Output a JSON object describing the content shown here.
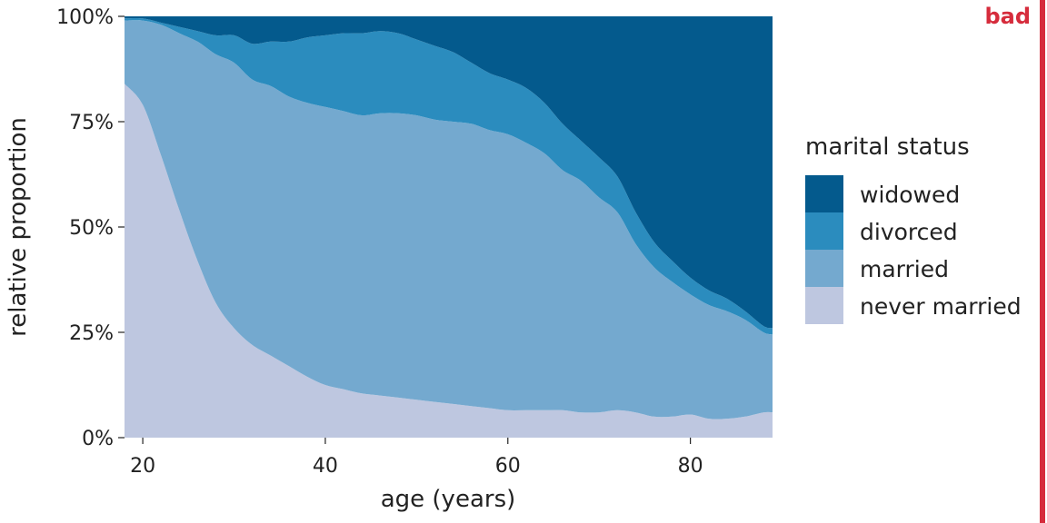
{
  "badge": {
    "text": "bad",
    "color": "#d62c3c"
  },
  "chart_data": {
    "type": "area",
    "stacked": true,
    "normalized": true,
    "xlabel": "age (years)",
    "ylabel": "relative proportion",
    "xlim": [
      18,
      89
    ],
    "ylim": [
      0,
      100
    ],
    "x_ticks": [
      20,
      40,
      60,
      80
    ],
    "y_ticks": [
      0,
      25,
      50,
      75,
      100
    ],
    "y_tick_labels": [
      "0%",
      "25%",
      "50%",
      "75%",
      "100%"
    ],
    "legend": {
      "title": "marital status",
      "position": "right"
    },
    "x": [
      18,
      20,
      22,
      24,
      26,
      28,
      30,
      32,
      34,
      36,
      38,
      40,
      42,
      44,
      46,
      48,
      50,
      52,
      54,
      56,
      58,
      60,
      62,
      64,
      66,
      68,
      70,
      72,
      74,
      76,
      78,
      80,
      82,
      84,
      86,
      88,
      89
    ],
    "series": [
      {
        "name": "never married",
        "color": "#bec7e0",
        "values": [
          84,
          79,
          67,
          54,
          42,
          32,
          26,
          22,
          19.5,
          17,
          14.5,
          12.5,
          11.5,
          10.5,
          10,
          9.5,
          9,
          8.5,
          8,
          7.5,
          7,
          6.5,
          6.5,
          6.5,
          6.5,
          6,
          6,
          6.5,
          6,
          5,
          5,
          5.5,
          4.5,
          4.5,
          5,
          6,
          6
        ]
      },
      {
        "name": "married",
        "color": "#74a9cf",
        "values": [
          15,
          20,
          31,
          42,
          52,
          59,
          63,
          63,
          64,
          64,
          65,
          66,
          66,
          66,
          67,
          67.5,
          67.5,
          67,
          67,
          67,
          66,
          65.5,
          63.5,
          61,
          57,
          55,
          51,
          47,
          40,
          35.5,
          32,
          28.5,
          27,
          25.5,
          23,
          19,
          18.5
        ]
      },
      {
        "name": "divorced",
        "color": "#2b8cbe",
        "values": [
          0.5,
          0.5,
          0.5,
          1.5,
          2.5,
          4.5,
          6.5,
          8.5,
          10.5,
          13,
          15.5,
          17,
          18.5,
          19.5,
          19.5,
          19,
          18,
          17.5,
          16.5,
          14.5,
          13.5,
          13,
          13,
          12,
          11,
          9.5,
          9.5,
          8.5,
          7.5,
          6,
          5,
          4,
          3.5,
          3,
          2,
          1.5,
          1.5
        ]
      },
      {
        "name": "widowed",
        "color": "#045a8d",
        "values": [
          0.5,
          0.5,
          1.5,
          2.5,
          3.5,
          4.5,
          4.5,
          6.5,
          6,
          6,
          5,
          4.5,
          4,
          4,
          3.5,
          4,
          5.5,
          7,
          8.5,
          11,
          13.5,
          15,
          17,
          20.5,
          25.5,
          29.5,
          33.5,
          38,
          46.5,
          53.5,
          58,
          62,
          65,
          67,
          70,
          73.5,
          74
        ]
      }
    ]
  }
}
